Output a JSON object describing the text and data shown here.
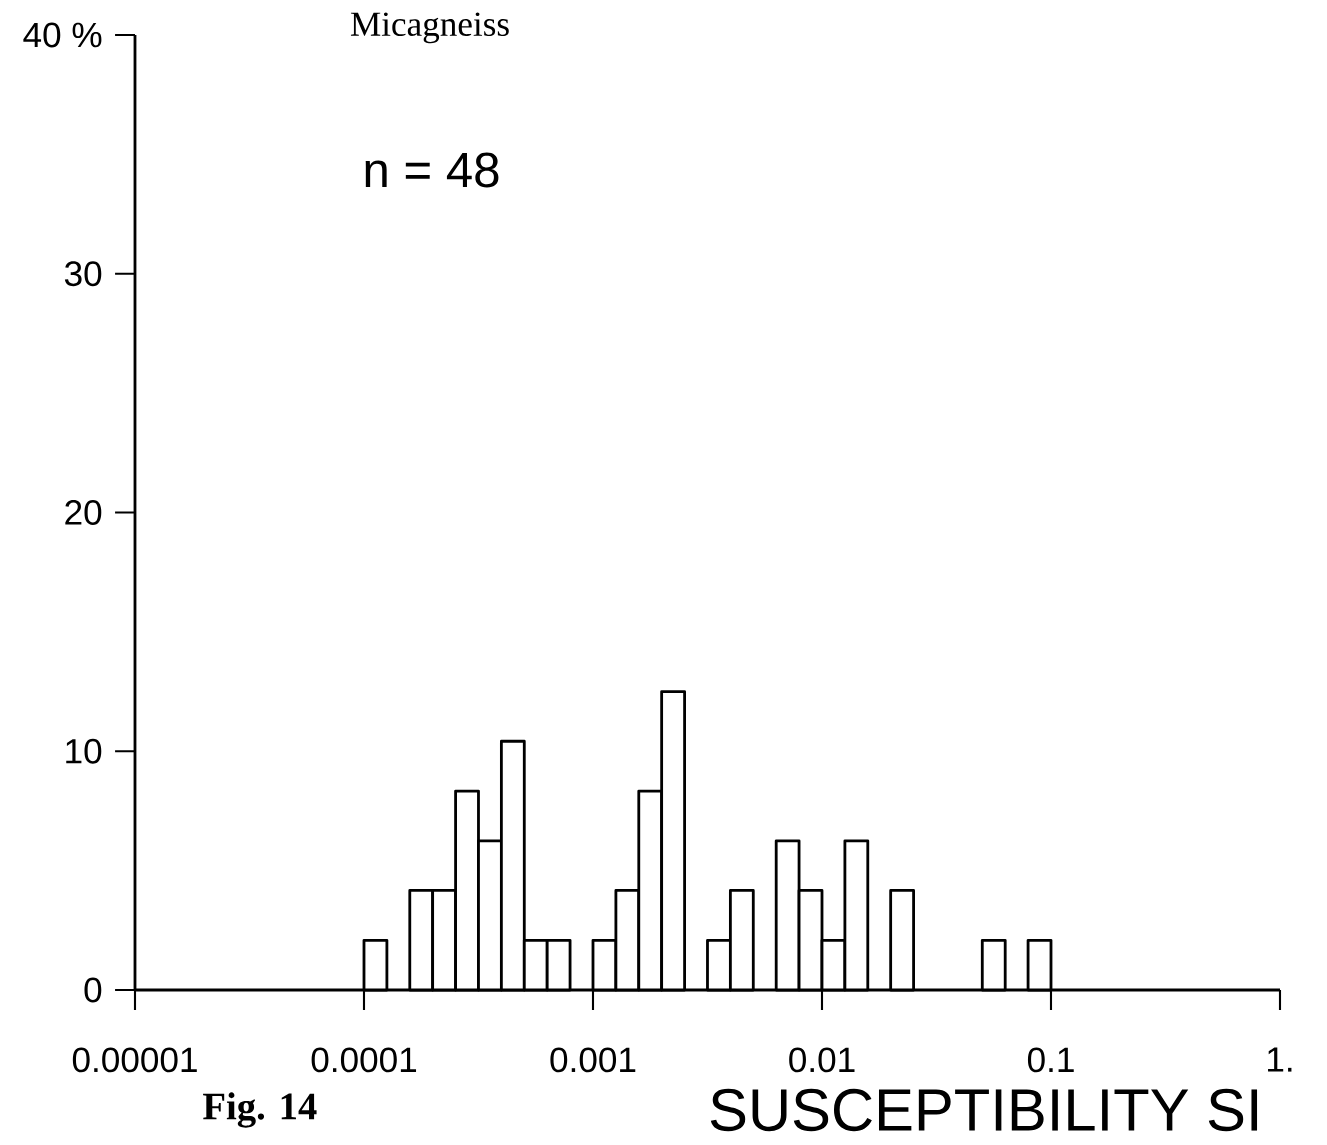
{
  "chart_data": {
    "type": "histogram",
    "title": "Micagneiss",
    "xlabel": "SUSCEPTIBILITY    SI",
    "annotations": [
      "n =   48",
      "**Fig. 14**"
    ],
    "log": "x",
    "bins": [
      0.0001,
      0.0001259,
      0.0001585,
      0.0001995,
      0.0002512,
      0.0003162,
      0.0003981,
      0.0005012,
      0.000631,
      0.0007943,
      0.001,
      0.001259,
      0.001585,
      0.001995,
      0.002512,
      0.003162,
      0.003981,
      0.005012,
      0.00631,
      0.007943,
      0.01,
      0.01259,
      0.01585,
      0.01995,
      0.02512,
      0.03162,
      0.03981,
      0.05012,
      0.0631,
      0.07943,
      0.1
    ],
    "values": [
      2.08,
      0,
      4.17,
      4.17,
      8.33,
      6.25,
      10.42,
      2.08,
      2.08,
      0,
      2.08,
      4.17,
      8.33,
      12.5,
      0,
      2.08,
      4.17,
      0,
      6.25,
      4.17,
      2.08,
      6.25,
      0,
      4.17,
      0,
      0,
      0,
      2.08,
      0,
      2.08
    ],
    "color": "#ffffff",
    "xlim": [
      1e-05,
      1
    ],
    "xticks": [
      {
        "value": 1e-05,
        "label": "0.00001"
      },
      {
        "value": 0.0001,
        "label": "0.0001"
      },
      {
        "value": 0.001,
        "label": "0.001"
      },
      {
        "value": 0.01,
        "label": "0.01"
      },
      {
        "value": 0.1,
        "label": "0.1"
      },
      {
        "value": 1,
        "label": "1."
      }
    ],
    "ylim": [
      0,
      40
    ],
    "yticks": [
      0,
      10,
      20,
      30,
      {
        "value": 40,
        "label": "40 %"
      }
    ]
  }
}
